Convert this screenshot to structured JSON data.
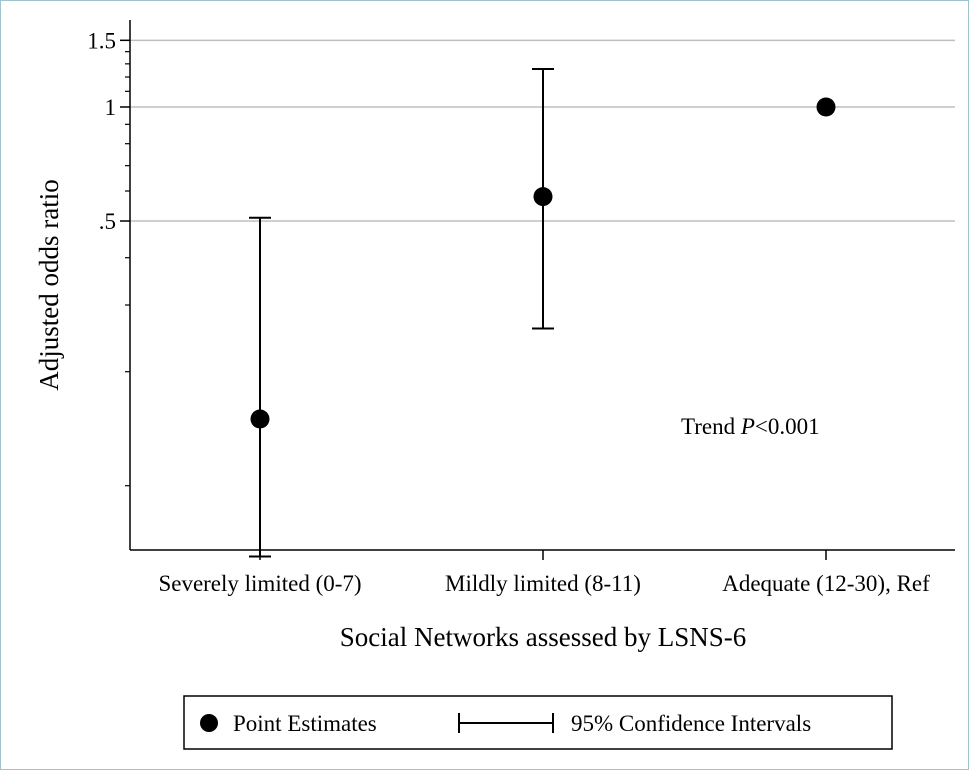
{
  "chart_data": {
    "type": "scatter",
    "scale": "log",
    "ylabel": "Adjusted odds ratio",
    "xlabel": "Social Networks assessed by LSNS-6",
    "y_ticks": [
      {
        "value": 1.5,
        "label": "1.5"
      },
      {
        "value": 1,
        "label": "1"
      },
      {
        "value": 0.5,
        "label": ".5"
      }
    ],
    "y_minor_ticks": [
      1.4,
      1.3,
      1.2,
      1.1,
      0.9,
      0.8,
      0.7,
      0.6,
      0.4,
      0.3,
      0.2,
      0.1
    ],
    "categories": [
      {
        "label": "Severely limited (0-7)",
        "estimate": 0.15,
        "lower": 0.065,
        "upper": 0.51
      },
      {
        "label": "Mildly limited (8-11)",
        "estimate": 0.58,
        "lower": 0.26,
        "upper": 1.26
      },
      {
        "label": "Adequate (12-30), Ref",
        "estimate": 1.0,
        "lower": null,
        "upper": null
      }
    ],
    "annotation": {
      "prefix": "Trend ",
      "italic": "P",
      "suffix": "<0.001"
    },
    "legend": {
      "position": "bottom",
      "point_label": "Point Estimates",
      "ci_label": "95% Confidence Intervals"
    },
    "grid": true,
    "colors": {
      "marker": "#000000",
      "grid": "#bfbfbf",
      "axis": "#000000"
    }
  }
}
